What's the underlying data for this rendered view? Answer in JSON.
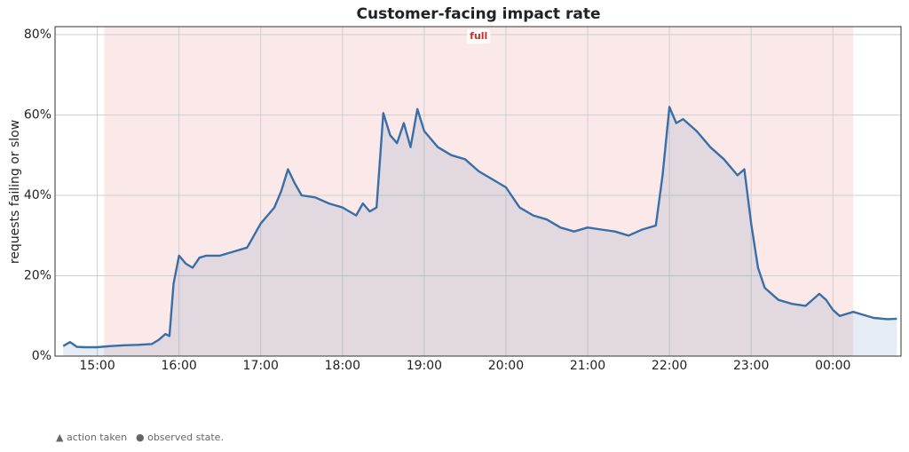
{
  "chart_data": {
    "type": "line",
    "title": "Customer-facing impact rate",
    "y_label": "requests failing or slow",
    "x": [
      "14:35",
      "14:40",
      "14:45",
      "14:50",
      "15:00",
      "15:10",
      "15:20",
      "15:30",
      "15:40",
      "15:45",
      "15:50",
      "15:53",
      "15:56",
      "16:00",
      "16:05",
      "16:10",
      "16:15",
      "16:20",
      "16:30",
      "16:40",
      "16:50",
      "17:00",
      "17:10",
      "17:15",
      "17:20",
      "17:25",
      "17:30",
      "17:40",
      "17:50",
      "18:00",
      "18:10",
      "18:15",
      "18:20",
      "18:25",
      "18:30",
      "18:35",
      "18:40",
      "18:45",
      "18:50",
      "18:55",
      "19:00",
      "19:10",
      "19:20",
      "19:30",
      "19:40",
      "19:50",
      "20:00",
      "20:10",
      "20:20",
      "20:30",
      "20:40",
      "20:50",
      "21:00",
      "21:10",
      "21:20",
      "21:30",
      "21:40",
      "21:50",
      "21:55",
      "22:00",
      "22:05",
      "22:10",
      "22:20",
      "22:30",
      "22:40",
      "22:50",
      "22:55",
      "23:00",
      "23:05",
      "23:10",
      "23:20",
      "23:30",
      "23:40",
      "23:50",
      "23:55",
      "00:00",
      "00:05",
      "00:10",
      "00:15",
      "00:20",
      "00:30",
      "00:40",
      "00:47"
    ],
    "series": [
      {
        "name": "impact rate",
        "color": "#3a6ea5",
        "values": [
          2.5,
          3.5,
          2.3,
          2.2,
          2.2,
          2.5,
          2.7,
          2.8,
          3.0,
          4.0,
          5.5,
          5.0,
          18,
          25,
          23,
          22,
          24.5,
          25,
          25,
          26,
          27,
          33,
          37,
          41,
          46.5,
          43,
          40,
          39.5,
          38,
          37,
          35,
          38,
          36,
          37,
          60.5,
          55,
          53,
          58,
          52,
          61.5,
          56,
          52,
          50,
          49,
          46,
          44,
          42,
          37,
          35,
          34,
          32,
          31,
          32,
          31.5,
          31,
          30,
          31.5,
          32.5,
          45,
          62,
          58,
          59,
          56,
          52,
          49,
          45,
          46.5,
          33,
          22,
          17,
          14,
          13,
          12.5,
          15.5,
          14,
          11.5,
          10,
          10.5,
          11,
          10.5,
          9.5,
          9.2,
          9.3
        ]
      }
    ],
    "bands": [
      {
        "label": "full",
        "start": "15:05",
        "end": "00:15",
        "color": "#fbe9ea"
      }
    ],
    "xlim": [
      "14:29",
      "00:50"
    ],
    "xticks": [
      "15:00",
      "16:00",
      "17:00",
      "18:00",
      "19:00",
      "20:00",
      "21:00",
      "22:00",
      "23:00",
      "00:00"
    ],
    "ylim": [
      0,
      82
    ],
    "yticks": [
      {
        "value": 0,
        "label": "0%"
      },
      {
        "value": 20,
        "label": "20%"
      },
      {
        "value": 40,
        "label": "40%"
      },
      {
        "value": 60,
        "label": "60%"
      },
      {
        "value": 80,
        "label": "80%"
      }
    ],
    "grid": true,
    "footer_notes": [
      "▲ action taken",
      "● observed state."
    ]
  }
}
